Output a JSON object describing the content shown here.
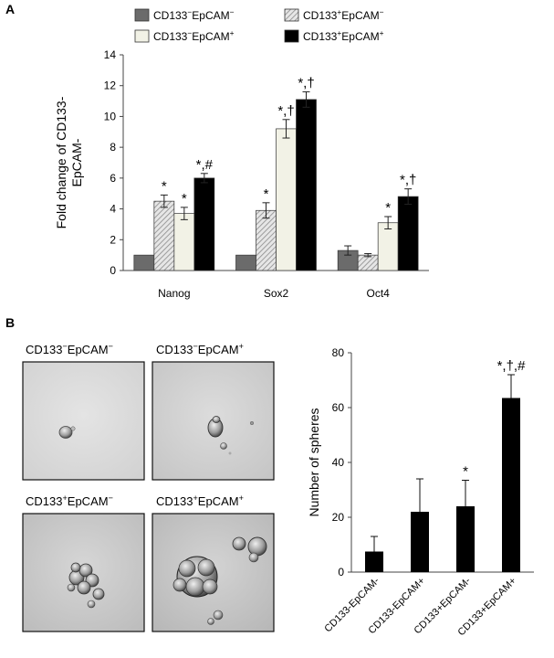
{
  "panelA": {
    "letter": "A",
    "legend": [
      {
        "pre": "CD133",
        "sup1": "−",
        "mid": "EpCAM",
        "sup2": "−",
        "fill": "#6b6b6b"
      },
      {
        "pre": "CD133",
        "sup1": "+",
        "mid": "EpCAM",
        "sup2": "−",
        "fill": "url(#hatchA)"
      },
      {
        "pre": "CD133",
        "sup1": "−",
        "mid": "EpCAM",
        "sup2": "+",
        "fill": "#f2f2e6"
      },
      {
        "pre": "CD133",
        "sup1": "+",
        "mid": "EpCAM",
        "sup2": "+",
        "fill": "#000000"
      }
    ]
  },
  "panelB": {
    "letter": "B",
    "image_labels": [
      {
        "pre": "CD133",
        "sup1": "−",
        "mid": "EpCAM",
        "sup2": "−"
      },
      {
        "pre": "CD133",
        "sup1": "−",
        "mid": "EpCAM",
        "sup2": "+"
      },
      {
        "pre": "CD133",
        "sup1": "+",
        "mid": "EpCAM",
        "sup2": "−"
      },
      {
        "pre": "CD133",
        "sup1": "+",
        "mid": "EpCAM",
        "sup2": "+"
      }
    ]
  },
  "chart_data": [
    {
      "type": "bar",
      "title": "",
      "ylabel": "Fold change of CD133-EpCAM-",
      "ylabel_lines": [
        "Fold change of CD133-",
        "EpCAM-"
      ],
      "xlabel": "",
      "categories": [
        "Nanog",
        "Sox2",
        "Oct4"
      ],
      "ylim": [
        0,
        14
      ],
      "yticks": [
        0,
        2,
        4,
        6,
        8,
        10,
        12,
        14
      ],
      "grid": false,
      "legend_position": "top",
      "series": [
        {
          "name": "CD133−EpCAM−",
          "values": [
            1.0,
            1.0,
            1.3
          ],
          "errors": [
            0,
            0,
            0.3
          ],
          "annotations": [
            "",
            "",
            ""
          ]
        },
        {
          "name": "CD133−EpCAM+",
          "values": [
            4.5,
            3.9,
            1.0
          ],
          "errors": [
            0.4,
            0.5,
            0.1
          ],
          "annotations": [
            "*",
            "*",
            ""
          ]
        },
        {
          "name": "CD133+EpCAM−",
          "values": [
            3.7,
            9.2,
            3.1
          ],
          "errors": [
            0.4,
            0.6,
            0.4
          ],
          "annotations": [
            "*",
            "*,†",
            "*"
          ]
        },
        {
          "name": "CD133+EpCAM+",
          "values": [
            6.0,
            11.1,
            4.8
          ],
          "errors": [
            0.3,
            0.5,
            0.5
          ],
          "annotations": [
            "*,#",
            "*,†",
            "*,†"
          ]
        }
      ]
    },
    {
      "type": "bar",
      "title": "",
      "ylabel": "Number of spheres",
      "xlabel": "",
      "categories": [
        "CD133-EpCAM-",
        "CD133-EpCAM+",
        "CD133+EpCAM-",
        "CD133+EpCAM+"
      ],
      "values": [
        7.5,
        22.0,
        24.0,
        63.5
      ],
      "errors": [
        5.5,
        12.0,
        9.5,
        8.5
      ],
      "annotations": [
        "",
        "",
        "*",
        "*,†,#"
      ],
      "ylim": [
        0,
        80
      ],
      "yticks": [
        0,
        20,
        40,
        60,
        80
      ],
      "grid": false
    }
  ]
}
